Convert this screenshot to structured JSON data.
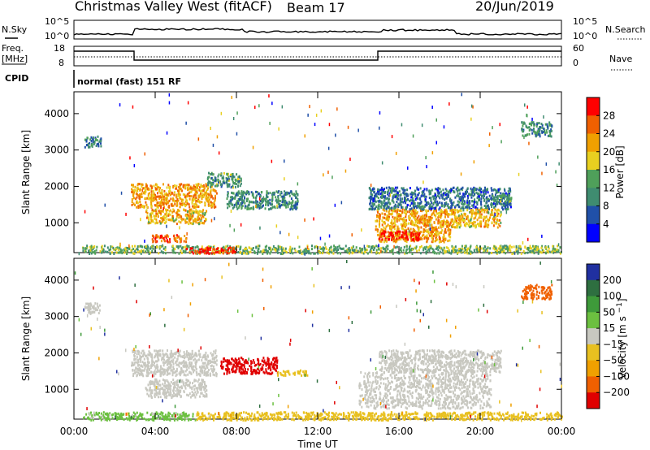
{
  "header": {
    "station": "Christmas Valley West (fitACF)",
    "beam": "Beam 17",
    "date": "20/Jun/2019"
  },
  "top_panels": {
    "nsky_label": "N.Sky",
    "nsky_ticks": [
      "10^5",
      "10^0"
    ],
    "nsearch_label": "N.Search",
    "nsearch_ticks": [
      "10^5",
      "10^0"
    ],
    "freq_label_1": "Freq.",
    "freq_label_2": "[MHz]",
    "freq_ticks": [
      "18",
      "8"
    ],
    "nave_label": "Nave",
    "nave_ticks": [
      "60",
      "0"
    ],
    "cpid_label": "CPID",
    "cpid_value": "normal (fast) 151 RF"
  },
  "colors": {
    "power_scale": [
      "#0000ff",
      "#2050a8",
      "#3f8c70",
      "#4fa05a",
      "#e8d020",
      "#f0a000",
      "#f06000",
      "#ff0000"
    ],
    "velocity_scale": [
      "#2030a0",
      "#2e6f40",
      "#3e9a3a",
      "#6cc040",
      "#c8c8c0",
      "#e8c020",
      "#f0a000",
      "#f06000",
      "#e00000"
    ]
  },
  "chart_data": [
    {
      "type": "heatmap",
      "name": "Power",
      "ylabel": "Slant Range [km]",
      "xlabel": "Time UT",
      "x_ticks": [
        "00:00",
        "04:00",
        "08:00",
        "12:00",
        "16:00",
        "20:00",
        "00:00"
      ],
      "xlim_hours": [
        0,
        24
      ],
      "y_ticks": [
        1000,
        2000,
        3000,
        4000
      ],
      "ylim": [
        180,
        4600
      ],
      "colorbar_label": "Power [dB]",
      "colorbar_ticks": [
        4,
        8,
        12,
        16,
        20,
        24,
        28
      ],
      "colorbar_range": [
        0,
        32
      ],
      "regions": [
        {
          "t": [
            0.4,
            24.0
          ],
          "r": [
            180,
            400
          ],
          "v": 14
        },
        {
          "t": [
            5.5,
            8.0
          ],
          "r": [
            180,
            350
          ],
          "v": 28
        },
        {
          "t": [
            0.5,
            1.3
          ],
          "r": [
            3100,
            3400
          ],
          "v": 10
        },
        {
          "t": [
            2.8,
            7.0
          ],
          "r": [
            1450,
            2100
          ],
          "v": 22
        },
        {
          "t": [
            3.5,
            6.5
          ],
          "r": [
            1000,
            1400
          ],
          "v": 20
        },
        {
          "t": [
            3.8,
            5.5
          ],
          "r": [
            500,
            700
          ],
          "v": 26
        },
        {
          "t": [
            7.5,
            11.0
          ],
          "r": [
            1400,
            1900
          ],
          "v": 10
        },
        {
          "t": [
            6.5,
            8.2
          ],
          "r": [
            2000,
            2400
          ],
          "v": 12
        },
        {
          "t": [
            14.8,
            18.5
          ],
          "r": [
            500,
            1400
          ],
          "v": 22
        },
        {
          "t": [
            15.0,
            17.0
          ],
          "r": [
            550,
            800
          ],
          "v": 30
        },
        {
          "t": [
            14.5,
            21.5
          ],
          "r": [
            1400,
            2000
          ],
          "v": 8
        },
        {
          "t": [
            18.5,
            21.0
          ],
          "r": [
            900,
            1400
          ],
          "v": 20
        },
        {
          "t": [
            20.5,
            21.5
          ],
          "r": [
            1600,
            1800
          ],
          "v": 12
        },
        {
          "t": [
            22.0,
            23.5
          ],
          "r": [
            3400,
            3800
          ],
          "v": 10
        }
      ]
    },
    {
      "type": "heatmap",
      "name": "Velocity",
      "ylabel": "Slant Range [km]",
      "xlabel": "Time UT",
      "x_ticks": [
        "00:00",
        "04:00",
        "08:00",
        "12:00",
        "16:00",
        "20:00",
        "00:00"
      ],
      "xlim_hours": [
        0,
        24
      ],
      "y_ticks": [
        1000,
        2000,
        3000,
        4000
      ],
      "ylim": [
        180,
        4600
      ],
      "colorbar_label": "Velocity [m s^-1]",
      "colorbar_ticks": [
        200,
        100,
        50,
        15,
        -15,
        -50,
        -100,
        -200
      ],
      "colorbar_range": [
        -250,
        250
      ],
      "regions": [
        {
          "t": [
            0.4,
            6.0
          ],
          "r": [
            180,
            400
          ],
          "v": 40
        },
        {
          "t": [
            6.0,
            24.0
          ],
          "r": [
            180,
            400
          ],
          "v": -50
        },
        {
          "t": [
            0.5,
            1.3
          ],
          "r": [
            3100,
            3400
          ],
          "v": 0
        },
        {
          "t": [
            2.8,
            7.0
          ],
          "r": [
            1400,
            2100
          ],
          "v": 0
        },
        {
          "t": [
            3.5,
            6.5
          ],
          "r": [
            800,
            1300
          ],
          "v": 0
        },
        {
          "t": [
            7.2,
            10.0
          ],
          "r": [
            1450,
            1900
          ],
          "v": -220
        },
        {
          "t": [
            10.0,
            11.5
          ],
          "r": [
            1400,
            1550
          ],
          "v": -60
        },
        {
          "t": [
            14.0,
            20.5
          ],
          "r": [
            500,
            1500
          ],
          "v": 0
        },
        {
          "t": [
            15.0,
            21.0
          ],
          "r": [
            1500,
            2100
          ],
          "v": 0
        },
        {
          "t": [
            22.0,
            23.5
          ],
          "r": [
            3500,
            3900
          ],
          "v": -180
        }
      ]
    }
  ]
}
